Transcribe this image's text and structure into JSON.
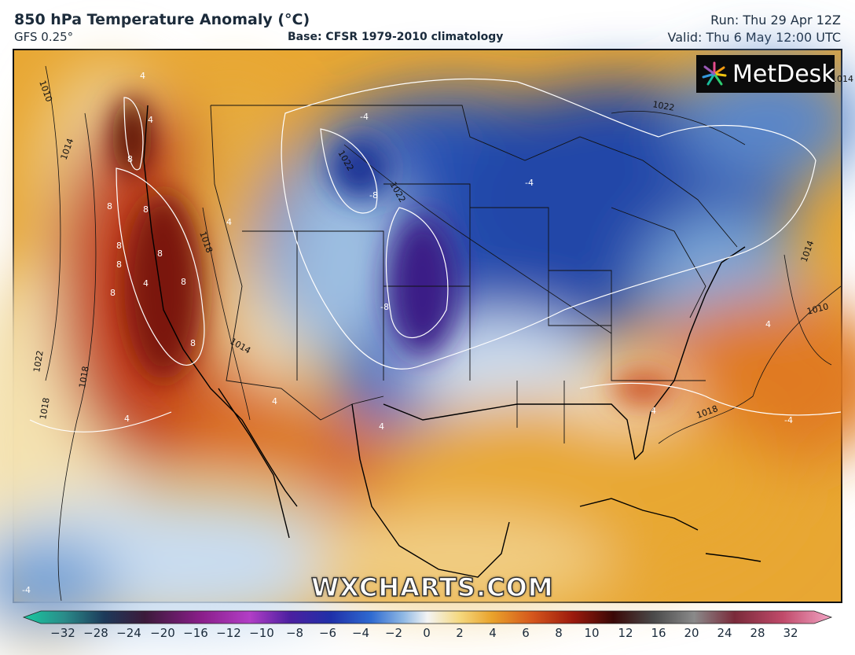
{
  "header": {
    "title": "850 hPa Temperature Anomaly (°C)",
    "model": "GFS 0.25°",
    "base": "Base: CFSR 1979-2010 climatology",
    "run": "Run: Thu 29 Apr 12Z",
    "valid": "Valid: Thu 6 May 12:00 UTC"
  },
  "map": {
    "logo_text": "MetDesk",
    "watermark": "WXCHARTS.COM",
    "anomaly_labels": [
      "4",
      "4",
      "4",
      "8",
      "8",
      "8",
      "8",
      "8",
      "8",
      "8",
      "8",
      "8",
      "4",
      "4",
      "4",
      "4",
      "4",
      "4",
      "-4",
      "-4",
      "-8",
      "-8",
      "-4",
      "-4"
    ],
    "isobar_labels": [
      "1010",
      "1014",
      "1014",
      "1018",
      "1018",
      "1022",
      "1022",
      "1022",
      "1018",
      "1014",
      "1010",
      "1014",
      "1018",
      "1022"
    ]
  },
  "colorbar": {
    "ticks": [
      "−32",
      "−28",
      "−24",
      "−20",
      "−16",
      "−12",
      "−10",
      "−8",
      "−6",
      "−4",
      "−2",
      "0",
      "2",
      "4",
      "6",
      "8",
      "10",
      "12",
      "16",
      "20",
      "24",
      "28",
      "32"
    ]
  }
}
